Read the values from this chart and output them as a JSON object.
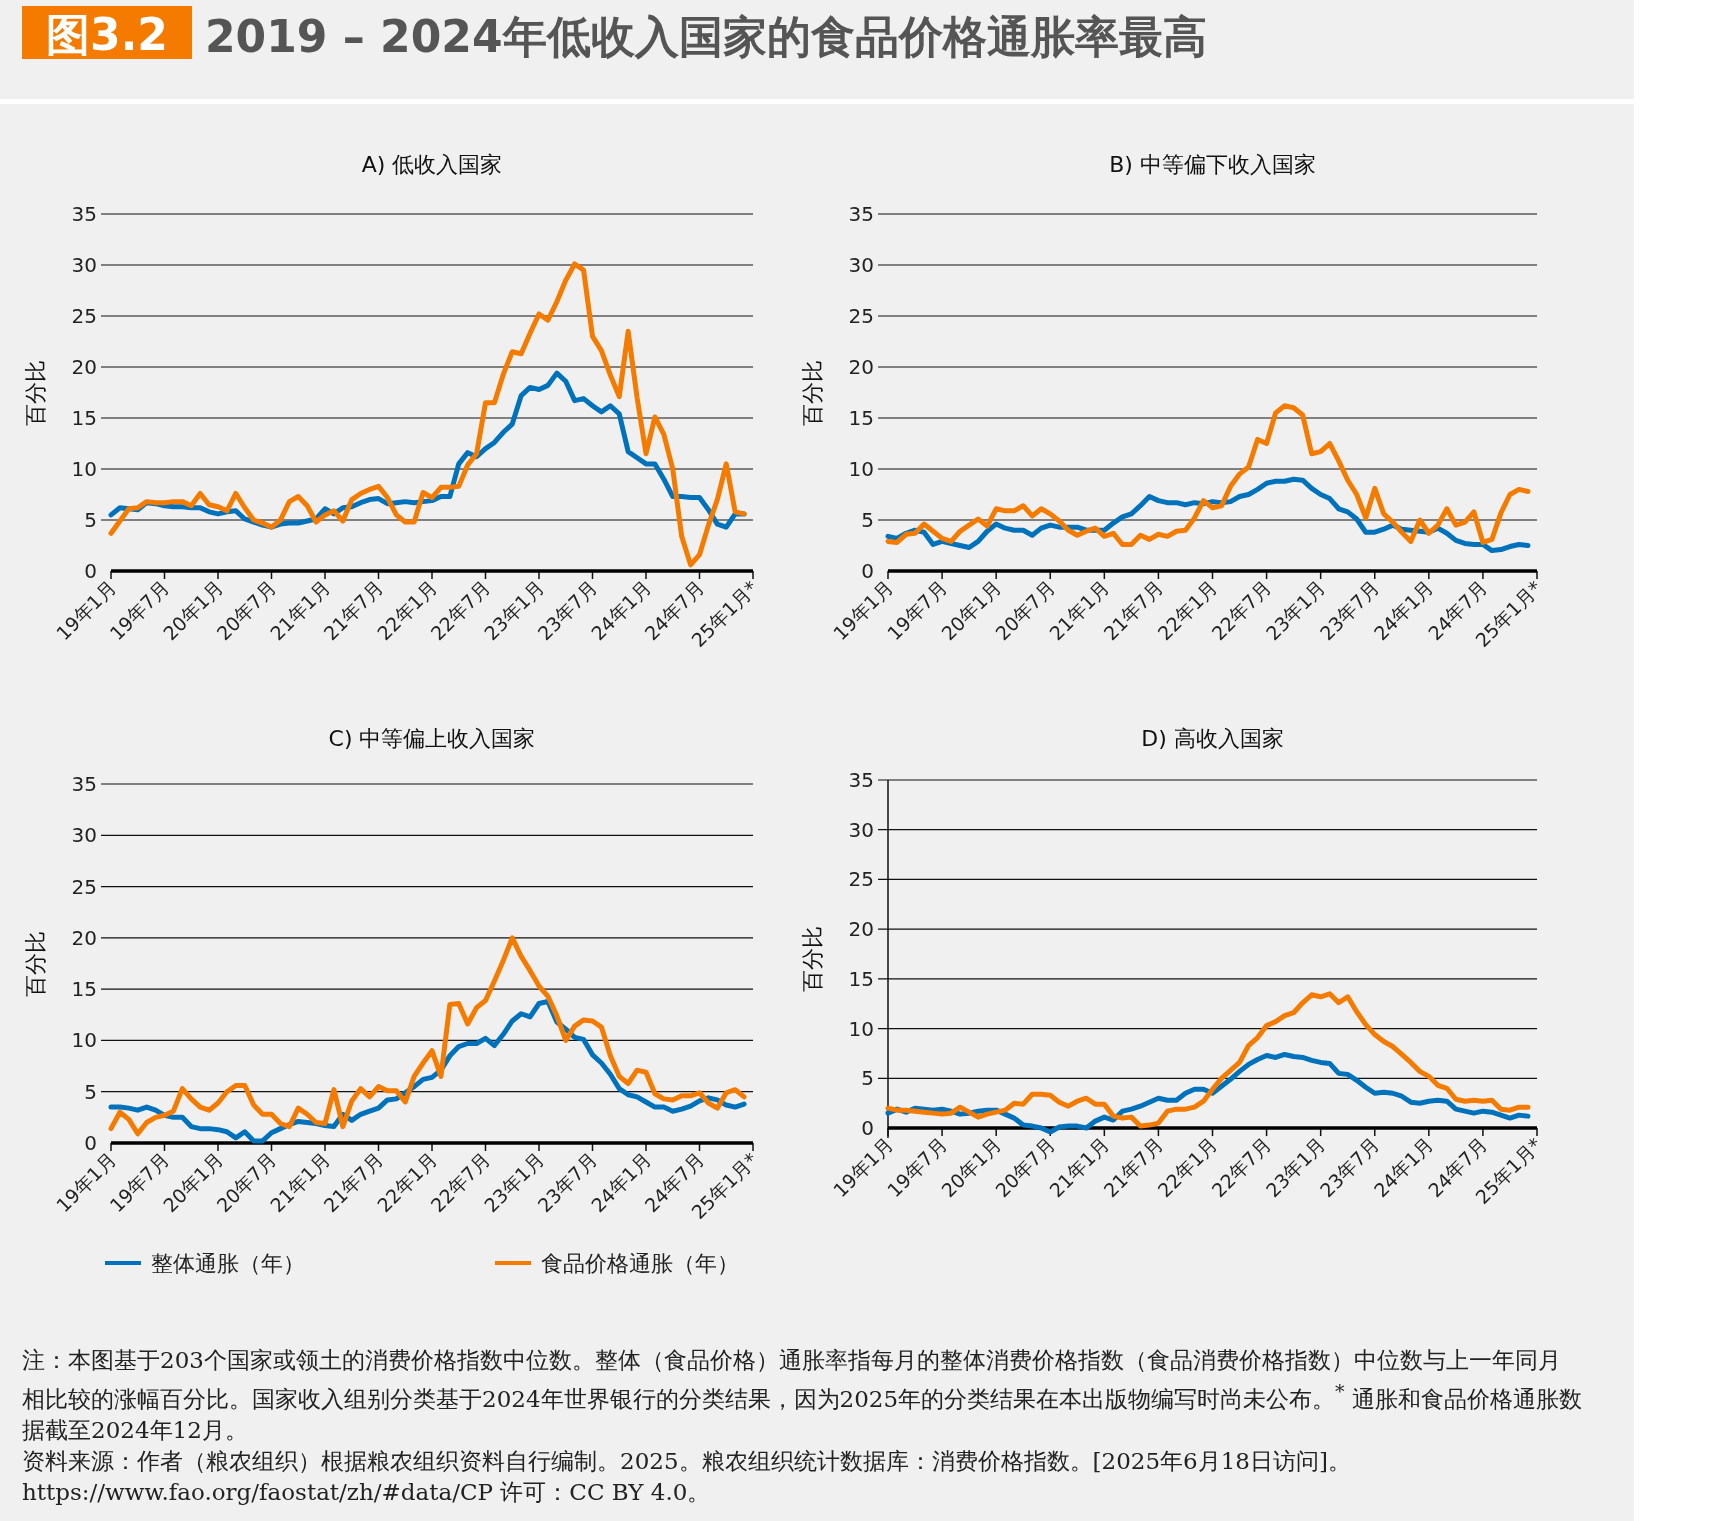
{
  "chart_data": [
    {
      "type": "line",
      "title": "A) 低收入国家",
      "ylabel": "百分比",
      "annotations": [
        "图3.2",
        "2019 – 2024年低收入国家的食品价格通胀率最高"
      ],
      "x": [
        "2019-01",
        "2019-02",
        "2019-03",
        "2019-04",
        "2019-05",
        "2019-06",
        "2019-07",
        "2019-08",
        "2019-09",
        "2019-10",
        "2019-11",
        "2019-12",
        "2020-01",
        "2020-02",
        "2020-03",
        "2020-04",
        "2020-05",
        "2020-06",
        "2020-07",
        "2020-08",
        "2020-09",
        "2020-10",
        "2020-11",
        "2020-12",
        "2021-01",
        "2021-02",
        "2021-03",
        "2021-04",
        "2021-05",
        "2021-06",
        "2021-07",
        "2021-08",
        "2021-09",
        "2021-10",
        "2021-11",
        "2021-12",
        "2022-01",
        "2022-02",
        "2022-03",
        "2022-04",
        "2022-05",
        "2022-06",
        "2022-07",
        "2022-08",
        "2022-09",
        "2022-10",
        "2022-11",
        "2022-12",
        "2023-01",
        "2023-02",
        "2023-03",
        "2023-04",
        "2023-05",
        "2023-06",
        "2023-07",
        "2023-08",
        "2023-09",
        "2023-10",
        "2023-11",
        "2023-12",
        "2024-01",
        "2024-02",
        "2024-03",
        "2024-04",
        "2024-05",
        "2024-06",
        "2024-07",
        "2024-08",
        "2024-09",
        "2024-10",
        "2024-11",
        "2024-12"
      ],
      "series": [
        {
          "color": "#0072bc",
          "values": [
            5.5,
            6.2,
            6.1,
            6.0,
            6.7,
            6.6,
            6.4,
            6.3,
            6.3,
            6.2,
            6.2,
            5.8,
            5.6,
            5.8,
            5.9,
            5.1,
            4.8,
            4.5,
            4.3,
            4.6,
            4.7,
            4.7,
            4.9,
            5.1,
            6.1,
            5.6,
            6.2,
            6.3,
            6.7,
            7.0,
            7.1,
            6.6,
            6.7,
            6.8,
            6.7,
            6.8,
            6.9,
            7.3,
            7.3,
            10.5,
            11.6,
            11.2,
            12.0,
            12.6,
            13.6,
            14.4,
            17.2,
            18.0,
            17.8,
            18.2,
            19.4,
            18.6,
            16.7,
            16.9,
            16.2,
            15.6,
            16.2,
            15.4,
            11.7,
            11.1,
            10.5,
            10.5,
            9.0,
            7.3,
            7.3,
            7.2,
            7.2,
            6.0,
            4.6,
            4.3,
            5.6,
            5.6
          ]
        },
        {
          "color": "#f47b00",
          "values": [
            3.7,
            4.9,
            6.1,
            6.2,
            6.8,
            6.7,
            6.7,
            6.8,
            6.8,
            6.4,
            7.6,
            6.5,
            6.3,
            5.9,
            7.6,
            6.2,
            5.0,
            4.7,
            4.3,
            5.0,
            6.8,
            7.3,
            6.4,
            4.8,
            5.5,
            5.9,
            4.9,
            7.0,
            7.6,
            8.0,
            8.3,
            7.2,
            5.5,
            4.8,
            4.8,
            7.7,
            7.2,
            8.2,
            8.2,
            8.3,
            10.4,
            11.5,
            16.5,
            16.5,
            19.3,
            21.5,
            21.3,
            23.3,
            25.2,
            24.6,
            26.4,
            28.5,
            30.1,
            29.5,
            23.0,
            21.6,
            19.2,
            17.1,
            23.5,
            17.0,
            11.5,
            15.1,
            13.4,
            10.0,
            3.4,
            0.6,
            1.6,
            4.5,
            7.0,
            10.5,
            5.8,
            5.6
          ]
        }
      ],
      "xlim": [
        "2019-01",
        "2025-01"
      ],
      "xticks": [
        {
          "value": "2019-01",
          "label": "19年1月"
        },
        {
          "value": "2019-07",
          "label": "19年7月"
        },
        {
          "value": "2020-01",
          "label": "20年1月"
        },
        {
          "value": "2020-07",
          "label": "20年7月"
        },
        {
          "value": "2021-01",
          "label": "21年1月"
        },
        {
          "value": "2021-07",
          "label": "21年7月"
        },
        {
          "value": "2022-01",
          "label": "22年1月"
        },
        {
          "value": "2022-07",
          "label": "22年7月"
        },
        {
          "value": "2023-01",
          "label": "23年1月"
        },
        {
          "value": "2023-07",
          "label": "23年7月"
        },
        {
          "value": "2024-01",
          "label": "24年1月"
        },
        {
          "value": "2024-07",
          "label": "24年7月"
        },
        {
          "value": "2025-01",
          "label": "25年1月*"
        }
      ],
      "ylim": [
        0,
        35
      ],
      "yticks": [
        0,
        5,
        10,
        15,
        20,
        25,
        30,
        35
      ],
      "grid": "y"
    },
    {
      "type": "line",
      "title": "B) 中等偏下收入国家",
      "ylabel": "百分比",
      "x": [
        "2019-01",
        "2019-02",
        "2019-03",
        "2019-04",
        "2019-05",
        "2019-06",
        "2019-07",
        "2019-08",
        "2019-09",
        "2019-10",
        "2019-11",
        "2019-12",
        "2020-01",
        "2020-02",
        "2020-03",
        "2020-04",
        "2020-05",
        "2020-06",
        "2020-07",
        "2020-08",
        "2020-09",
        "2020-10",
        "2020-11",
        "2020-12",
        "2021-01",
        "2021-02",
        "2021-03",
        "2021-04",
        "2021-05",
        "2021-06",
        "2021-07",
        "2021-08",
        "2021-09",
        "2021-10",
        "2021-11",
        "2021-12",
        "2022-01",
        "2022-02",
        "2022-03",
        "2022-04",
        "2022-05",
        "2022-06",
        "2022-07",
        "2022-08",
        "2022-09",
        "2022-10",
        "2022-11",
        "2022-12",
        "2023-01",
        "2023-02",
        "2023-03",
        "2023-04",
        "2023-05",
        "2023-06",
        "2023-07",
        "2023-08",
        "2023-09",
        "2023-10",
        "2023-11",
        "2023-12",
        "2024-01",
        "2024-02",
        "2024-03",
        "2024-04",
        "2024-05",
        "2024-06",
        "2024-07",
        "2024-08",
        "2024-09",
        "2024-10",
        "2024-11",
        "2024-12"
      ],
      "series": [
        {
          "color": "#0072bc",
          "values": [
            3.4,
            3.2,
            3.7,
            4.0,
            3.8,
            2.6,
            2.9,
            2.7,
            2.5,
            2.3,
            2.9,
            3.9,
            4.6,
            4.2,
            4.0,
            4.0,
            3.5,
            4.2,
            4.5,
            4.3,
            4.3,
            4.3,
            4.0,
            4.0,
            4.0,
            4.7,
            5.3,
            5.6,
            6.4,
            7.3,
            6.9,
            6.7,
            6.7,
            6.5,
            6.7,
            6.6,
            6.8,
            6.7,
            6.8,
            7.3,
            7.5,
            8.0,
            8.6,
            8.8,
            8.8,
            9.0,
            8.9,
            8.1,
            7.5,
            7.1,
            6.1,
            5.8,
            5.1,
            3.8,
            3.8,
            4.1,
            4.5,
            4.1,
            4.0,
            3.9,
            3.8,
            4.2,
            3.7,
            3.0,
            2.7,
            2.6,
            2.6,
            2.0,
            2.1,
            2.4,
            2.6,
            2.5
          ]
        },
        {
          "color": "#f47b00",
          "values": [
            2.9,
            2.8,
            3.6,
            3.7,
            4.6,
            3.9,
            3.2,
            2.9,
            3.9,
            4.5,
            5.1,
            4.4,
            6.1,
            5.9,
            5.9,
            6.4,
            5.4,
            6.1,
            5.6,
            4.9,
            4.0,
            3.5,
            3.9,
            4.2,
            3.4,
            3.7,
            2.6,
            2.6,
            3.5,
            3.1,
            3.6,
            3.4,
            3.9,
            4.0,
            5.2,
            6.9,
            6.2,
            6.4,
            8.3,
            9.5,
            10.2,
            12.9,
            12.5,
            15.5,
            16.2,
            16.0,
            15.3,
            11.5,
            11.7,
            12.5,
            10.8,
            8.9,
            7.5,
            5.2,
            8.1,
            5.6,
            4.8,
            3.8,
            2.9,
            5.0,
            3.7,
            4.5,
            6.1,
            4.5,
            4.8,
            5.8,
            2.8,
            3.1,
            5.7,
            7.5,
            8.0,
            7.8
          ]
        }
      ],
      "xlim": [
        "2019-01",
        "2025-01"
      ],
      "xticks": [
        {
          "value": "2019-01",
          "label": "19年1月"
        },
        {
          "value": "2019-07",
          "label": "19年7月"
        },
        {
          "value": "2020-01",
          "label": "20年1月"
        },
        {
          "value": "2020-07",
          "label": "20年7月"
        },
        {
          "value": "2021-01",
          "label": "21年1月"
        },
        {
          "value": "2021-07",
          "label": "21年7月"
        },
        {
          "value": "2022-01",
          "label": "22年1月"
        },
        {
          "value": "2022-07",
          "label": "22年7月"
        },
        {
          "value": "2023-01",
          "label": "23年1月"
        },
        {
          "value": "2023-07",
          "label": "23年7月"
        },
        {
          "value": "2024-01",
          "label": "24年1月"
        },
        {
          "value": "2024-07",
          "label": "24年7月"
        },
        {
          "value": "2025-01",
          "label": "25年1月*"
        }
      ],
      "ylim": [
        0,
        35
      ],
      "yticks": [
        0,
        5,
        10,
        15,
        20,
        25,
        30,
        35
      ],
      "grid": "y"
    },
    {
      "type": "line",
      "title": "C) 中等偏上收入国家",
      "ylabel": "百分比",
      "legend": "bottom",
      "x": [
        "2019-01",
        "2019-02",
        "2019-03",
        "2019-04",
        "2019-05",
        "2019-06",
        "2019-07",
        "2019-08",
        "2019-09",
        "2019-10",
        "2019-11",
        "2019-12",
        "2020-01",
        "2020-02",
        "2020-03",
        "2020-04",
        "2020-05",
        "2020-06",
        "2020-07",
        "2020-08",
        "2020-09",
        "2020-10",
        "2020-11",
        "2020-12",
        "2021-01",
        "2021-02",
        "2021-03",
        "2021-04",
        "2021-05",
        "2021-06",
        "2021-07",
        "2021-08",
        "2021-09",
        "2021-10",
        "2021-11",
        "2021-12",
        "2022-01",
        "2022-02",
        "2022-03",
        "2022-04",
        "2022-05",
        "2022-06",
        "2022-07",
        "2022-08",
        "2022-09",
        "2022-10",
        "2022-11",
        "2022-12",
        "2023-01",
        "2023-02",
        "2023-03",
        "2023-04",
        "2023-05",
        "2023-06",
        "2023-07",
        "2023-08",
        "2023-09",
        "2023-10",
        "2023-11",
        "2023-12",
        "2024-01",
        "2024-02",
        "2024-03",
        "2024-04",
        "2024-05",
        "2024-06",
        "2024-07",
        "2024-08",
        "2024-09",
        "2024-10",
        "2024-11",
        "2024-12"
      ],
      "series": [
        {
          "name": "整体通胀（年）",
          "color": "#0072bc",
          "values": [
            3.5,
            3.5,
            3.4,
            3.2,
            3.5,
            3.2,
            2.7,
            2.5,
            2.5,
            1.6,
            1.4,
            1.4,
            1.3,
            1.1,
            0.5,
            1.1,
            0.2,
            0.2,
            1.0,
            1.4,
            1.8,
            2.1,
            2.0,
            1.9,
            1.7,
            1.6,
            2.8,
            2.2,
            2.8,
            3.1,
            3.4,
            4.2,
            4.3,
            4.9,
            5.5,
            6.2,
            6.4,
            7.1,
            8.5,
            9.4,
            9.7,
            9.7,
            10.2,
            9.5,
            10.6,
            11.9,
            12.6,
            12.3,
            13.6,
            13.8,
            11.8,
            11.1,
            10.3,
            10.1,
            8.6,
            7.8,
            6.7,
            5.3,
            4.7,
            4.5,
            4.0,
            3.5,
            3.5,
            3.1,
            3.3,
            3.6,
            4.1,
            4.4,
            4.2,
            3.7,
            3.5,
            3.8
          ]
        },
        {
          "name": "食品价格通胀（年）",
          "color": "#f47b00",
          "values": [
            1.4,
            3.0,
            2.3,
            0.9,
            2.0,
            2.5,
            2.7,
            3.1,
            5.3,
            4.3,
            3.5,
            3.2,
            3.9,
            5.0,
            5.6,
            5.6,
            3.7,
            2.8,
            2.8,
            1.9,
            1.6,
            3.4,
            2.8,
            2.0,
            1.9,
            5.2,
            1.6,
            4.1,
            5.3,
            4.5,
            5.5,
            5.1,
            5.1,
            4.0,
            6.5,
            7.8,
            9.0,
            6.5,
            13.5,
            13.6,
            11.6,
            13.2,
            13.9,
            15.8,
            17.8,
            20.0,
            18.2,
            16.8,
            15.3,
            14.3,
            12.4,
            10.0,
            11.4,
            12.0,
            11.9,
            11.3,
            8.5,
            6.5,
            5.8,
            7.1,
            6.9,
            4.8,
            4.3,
            4.2,
            4.6,
            4.6,
            4.9,
            3.9,
            3.4,
            4.9,
            5.2,
            4.5
          ]
        }
      ],
      "xlim": [
        "2019-01",
        "2025-01"
      ],
      "xticks": [
        {
          "value": "2019-01",
          "label": "19年1月"
        },
        {
          "value": "2019-07",
          "label": "19年7月"
        },
        {
          "value": "2020-01",
          "label": "20年1月"
        },
        {
          "value": "2020-07",
          "label": "20年7月"
        },
        {
          "value": "2021-01",
          "label": "21年1月"
        },
        {
          "value": "2021-07",
          "label": "21年7月"
        },
        {
          "value": "2022-01",
          "label": "22年1月"
        },
        {
          "value": "2022-07",
          "label": "22年7月"
        },
        {
          "value": "2023-01",
          "label": "23年1月"
        },
        {
          "value": "2023-07",
          "label": "23年7月"
        },
        {
          "value": "2024-01",
          "label": "24年1月"
        },
        {
          "value": "2024-07",
          "label": "24年7月"
        },
        {
          "value": "2025-01",
          "label": "25年1月*"
        }
      ],
      "ylim": [
        0,
        35
      ],
      "yticks": [
        0,
        5,
        10,
        15,
        20,
        25,
        30,
        35
      ],
      "grid": "y"
    },
    {
      "type": "line",
      "title": "D) 高收入国家",
      "ylabel": "百分比",
      "annotations": [
        "注：本图基于203个国家或领土的消费价格指数中位数。整体（食品价格）通胀率指每月的整体消费价格指数（食品消费价格指数）中位数与上一年同月相比较的涨幅百分比。国家收入组别分类基于2024年世界银行的分类结果，因为2025年的分类结果在本出版物编写时尚未公布。$^{*}$ 通胀和食品价格通胀数据截至2024年12月。",
        "资料来源：作者（粮农组织）根据粮农组织资料自行编制。2025。粮农组织统计数据库：消费价格指数。[2025年6月18日访问]。https://www.fao.org/faostat/zh/#data/CP 许可：CC BY 4.0。"
      ],
      "x": [
        "2019-01",
        "2019-02",
        "2019-03",
        "2019-04",
        "2019-05",
        "2019-06",
        "2019-07",
        "2019-08",
        "2019-09",
        "2019-10",
        "2019-11",
        "2019-12",
        "2020-01",
        "2020-02",
        "2020-03",
        "2020-04",
        "2020-05",
        "2020-06",
        "2020-07",
        "2020-08",
        "2020-09",
        "2020-10",
        "2020-11",
        "2020-12",
        "2021-01",
        "2021-02",
        "2021-03",
        "2021-04",
        "2021-05",
        "2021-06",
        "2021-07",
        "2021-08",
        "2021-09",
        "2021-10",
        "2021-11",
        "2021-12",
        "2022-01",
        "2022-02",
        "2022-03",
        "2022-04",
        "2022-05",
        "2022-06",
        "2022-07",
        "2022-08",
        "2022-09",
        "2022-10",
        "2022-11",
        "2022-12",
        "2023-01",
        "2023-02",
        "2023-03",
        "2023-04",
        "2023-05",
        "2023-06",
        "2023-07",
        "2023-08",
        "2023-09",
        "2023-10",
        "2023-11",
        "2023-12",
        "2024-01",
        "2024-02",
        "2024-03",
        "2024-04",
        "2024-05",
        "2024-06",
        "2024-07",
        "2024-08",
        "2024-09",
        "2024-10",
        "2024-11",
        "2024-12"
      ],
      "series": [
        {
          "color": "#0072bc",
          "values": [
            1.5,
            1.9,
            1.6,
            2.0,
            1.9,
            1.8,
            1.9,
            1.7,
            1.4,
            1.5,
            1.7,
            1.8,
            1.8,
            1.4,
            1.0,
            0.3,
            0.2,
            0.0,
            -0.4,
            0.1,
            0.2,
            0.2,
            0.0,
            0.7,
            1.1,
            0.8,
            1.7,
            1.9,
            2.2,
            2.6,
            3.0,
            2.8,
            2.8,
            3.5,
            3.9,
            3.9,
            3.5,
            4.2,
            4.9,
            5.7,
            6.4,
            6.9,
            7.3,
            7.1,
            7.4,
            7.2,
            7.1,
            6.8,
            6.6,
            6.5,
            5.5,
            5.4,
            4.8,
            4.1,
            3.5,
            3.6,
            3.5,
            3.2,
            2.6,
            2.5,
            2.7,
            2.8,
            2.7,
            1.9,
            1.7,
            1.5,
            1.7,
            1.6,
            1.3,
            1.0,
            1.3,
            1.2
          ]
        },
        {
          "color": "#f47b00",
          "values": [
            2.0,
            1.8,
            1.8,
            1.7,
            1.6,
            1.5,
            1.4,
            1.5,
            2.1,
            1.6,
            1.1,
            1.4,
            1.6,
            1.8,
            2.5,
            2.4,
            3.4,
            3.4,
            3.3,
            2.6,
            2.2,
            2.7,
            3.0,
            2.4,
            2.4,
            1.2,
            1.0,
            1.1,
            0.2,
            0.3,
            0.5,
            1.7,
            1.9,
            1.9,
            2.1,
            2.7,
            3.9,
            5.0,
            5.8,
            6.6,
            8.3,
            9.1,
            10.3,
            10.7,
            11.3,
            11.6,
            12.6,
            13.4,
            13.2,
            13.5,
            12.6,
            13.2,
            11.7,
            10.4,
            9.4,
            8.7,
            8.2,
            7.4,
            6.6,
            5.7,
            5.2,
            4.3,
            4.0,
            2.9,
            2.7,
            2.8,
            2.7,
            2.8,
            1.9,
            1.8,
            2.1,
            2.1
          ]
        }
      ],
      "xlim": [
        "2019-01",
        "2025-01"
      ],
      "xticks": [
        {
          "value": "2019-01",
          "label": "19年1月"
        },
        {
          "value": "2019-07",
          "label": "19年7月"
        },
        {
          "value": "2020-01",
          "label": "20年1月"
        },
        {
          "value": "2020-07",
          "label": "20年7月"
        },
        {
          "value": "2021-01",
          "label": "21年1月"
        },
        {
          "value": "2021-07",
          "label": "21年7月"
        },
        {
          "value": "2022-01",
          "label": "22年1月"
        },
        {
          "value": "2022-07",
          "label": "22年7月"
        },
        {
          "value": "2023-01",
          "label": "23年1月"
        },
        {
          "value": "2023-07",
          "label": "23年7月"
        },
        {
          "value": "2024-01",
          "label": "24年1月"
        },
        {
          "value": "2024-07",
          "label": "24年7月"
        },
        {
          "value": "2025-01",
          "label": "25年1月*"
        }
      ],
      "ylim": [
        -1,
        35
      ],
      "yticks": [
        0,
        5,
        10,
        15,
        20,
        25,
        30,
        35
      ],
      "grid": "y"
    }
  ]
}
